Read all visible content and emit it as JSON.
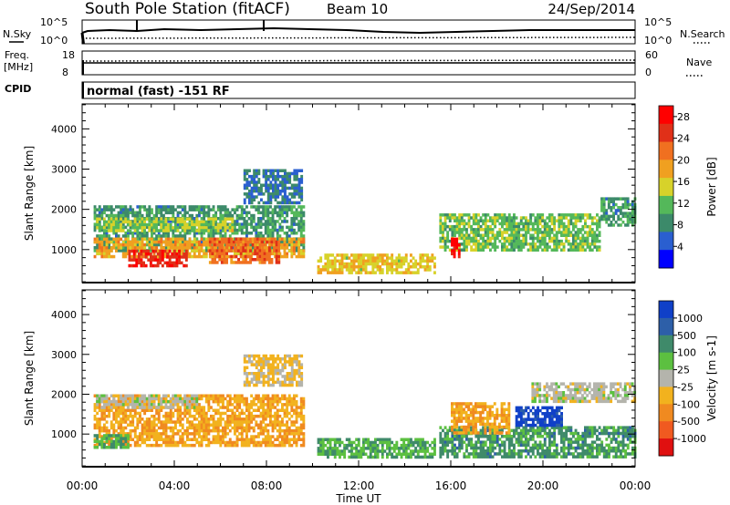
{
  "header": {
    "station": "South Pole Station (fitACF)",
    "beam": "Beam 10",
    "date": "24/Sep/2014"
  },
  "status_panels": {
    "nsky_label": "N.Sky",
    "nsky_ticks": [
      "10^5",
      "10^0"
    ],
    "nsearch_label": "N.Search",
    "nsearch_ticks": [
      "10^5",
      "10^0"
    ],
    "freq_label_1": "Freq.",
    "freq_label_2": "[MHz]",
    "freq_ticks": [
      "18",
      "8"
    ],
    "nave_label": "Nave",
    "nave_ticks": [
      "60",
      "0"
    ],
    "cpid_label": "CPID",
    "cpid_text": "normal (fast) -151 RF"
  },
  "xaxis": {
    "label": "Time UT",
    "ticks": [
      "00:00",
      "04:00",
      "08:00",
      "12:00",
      "16:00",
      "20:00",
      "00:00"
    ]
  },
  "colors": {
    "power": [
      "#0000ff",
      "#2a5fd0",
      "#3c8a6a",
      "#54b85a",
      "#d7d22a",
      "#f0a020",
      "#f07020",
      "#e03018",
      "#ff0000"
    ],
    "velocity": [
      "#1040c8",
      "#2d5fa8",
      "#3f8a6a",
      "#5cc040",
      "#b4b4ac",
      "#f2b21e",
      "#f08a20",
      "#f05a20",
      "#e01010"
    ]
  },
  "chart_data": [
    {
      "type": "heatmap",
      "ylabel": "Slant Range [km]",
      "yticks": [
        1000,
        2000,
        3000,
        4000
      ],
      "ylim": [
        180,
        4620
      ],
      "xlim_hours": [
        0,
        24
      ],
      "colorbar": {
        "label": "Power [dB]",
        "ticks": [
          "28",
          "24",
          "20",
          "16",
          "12",
          "8",
          "4"
        ],
        "range": [
          0,
          30
        ]
      },
      "regions": [
        {
          "t0": 0.5,
          "t1": 9.6,
          "r0": 1000,
          "r1": 2100,
          "value": 9
        },
        {
          "t0": 0.5,
          "t1": 9.6,
          "r0": 800,
          "r1": 1300,
          "value": 18
        },
        {
          "t0": 2.0,
          "t1": 4.5,
          "r0": 600,
          "r1": 1000,
          "value": 26
        },
        {
          "t0": 5.5,
          "t1": 8.5,
          "r0": 700,
          "r1": 1300,
          "value": 22
        },
        {
          "t0": 0.6,
          "t1": 6.5,
          "r0": 1500,
          "r1": 1800,
          "value": 14
        },
        {
          "t0": 7.0,
          "t1": 9.5,
          "r0": 2200,
          "r1": 3000,
          "value": 7
        },
        {
          "t0": 10.2,
          "t1": 15.3,
          "r0": 400,
          "r1": 900,
          "value": 16
        },
        {
          "t0": 15.5,
          "t1": 22.5,
          "r0": 1000,
          "r1": 1900,
          "value": 12
        },
        {
          "t0": 16.0,
          "t1": 16.4,
          "r0": 800,
          "r1": 1300,
          "value": 28
        },
        {
          "t0": 22.5,
          "t1": 24.0,
          "r0": 1600,
          "r1": 2300,
          "value": 9
        }
      ]
    },
    {
      "type": "heatmap",
      "ylabel": "Slant Range [km]",
      "yticks": [
        1000,
        2000,
        3000,
        4000
      ],
      "ylim": [
        180,
        4620
      ],
      "xlim_hours": [
        0,
        24
      ],
      "colorbar": {
        "label": "Velocity [m s-1]",
        "ticks": [
          "1000",
          "500",
          "100",
          "25",
          "-25",
          "-100",
          "-500",
          "-1000"
        ],
        "range": [
          -1000,
          1000
        ]
      },
      "regions": [
        {
          "t0": 0.5,
          "t1": 9.6,
          "r0": 700,
          "r1": 2000,
          "value": -300
        },
        {
          "t0": 0.6,
          "t1": 5.0,
          "r0": 1700,
          "r1": 2000,
          "value": 0
        },
        {
          "t0": 0.5,
          "t1": 2.0,
          "r0": 700,
          "r1": 1000,
          "value": 300
        },
        {
          "t0": 7.0,
          "t1": 9.5,
          "r0": 2200,
          "r1": 3000,
          "value": -150
        },
        {
          "t0": 10.2,
          "t1": 15.3,
          "r0": 400,
          "r1": 900,
          "value": 300
        },
        {
          "t0": 15.5,
          "t1": 24.0,
          "r0": 400,
          "r1": 1200,
          "value": 400
        },
        {
          "t0": 16.0,
          "t1": 18.5,
          "r0": 1000,
          "r1": 1800,
          "value": -300
        },
        {
          "t0": 18.8,
          "t1": 20.8,
          "r0": 1200,
          "r1": 1700,
          "value": 900
        },
        {
          "t0": 19.5,
          "t1": 24.0,
          "r0": 1800,
          "r1": 2300,
          "value": 0
        }
      ]
    }
  ]
}
